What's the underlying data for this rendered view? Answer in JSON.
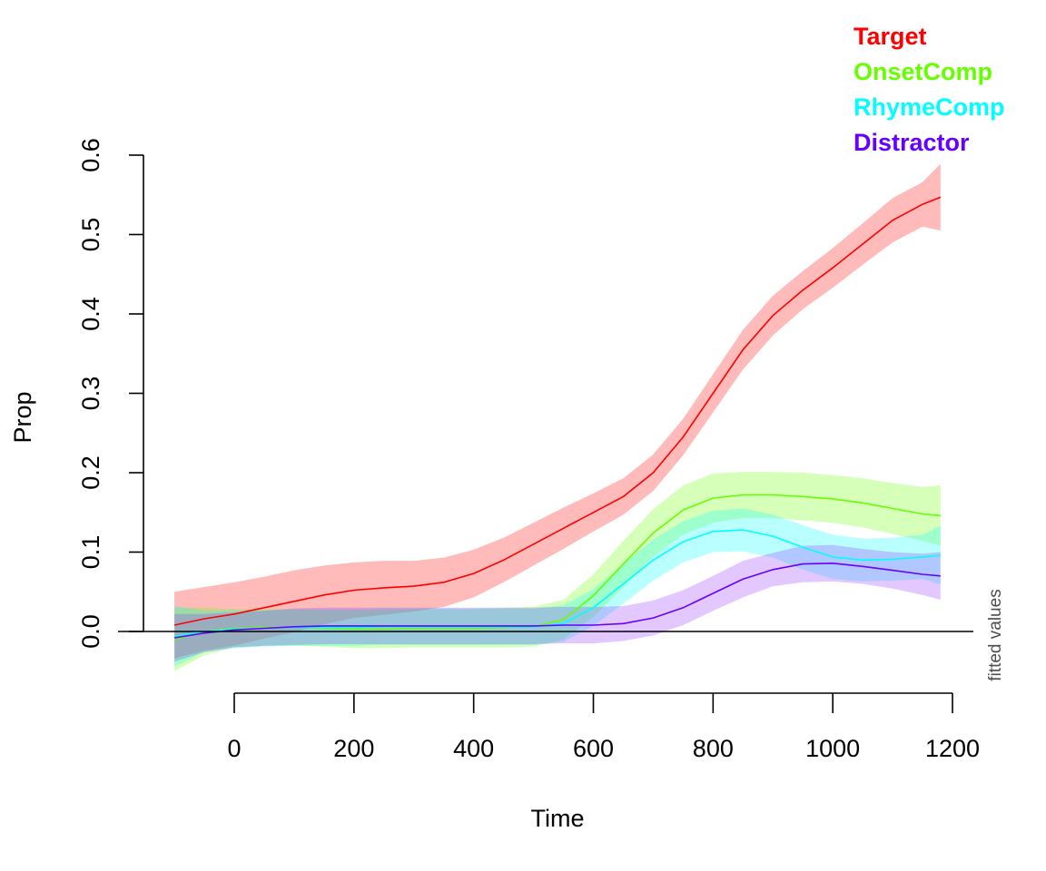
{
  "chart_data": {
    "type": "line",
    "title": "",
    "xlabel": "Time",
    "ylabel": "Prop",
    "annotation": "fitted values",
    "xlim": [
      -100,
      1180
    ],
    "ylim": [
      -0.05,
      0.6
    ],
    "xticks": [
      0,
      200,
      400,
      600,
      800,
      1000,
      1200
    ],
    "yticks": [
      0.0,
      0.1,
      0.2,
      0.3,
      0.4,
      0.5,
      0.6
    ],
    "xtick_labels": [
      "0",
      "200",
      "400",
      "600",
      "800",
      "1000",
      "1200"
    ],
    "ytick_labels": [
      "0.0",
      "0.1",
      "0.2",
      "0.3",
      "0.4",
      "0.5",
      "0.6"
    ],
    "reference_line_y": 0,
    "grid": false,
    "legend_position": "top-right",
    "x": [
      -100,
      -50,
      0,
      50,
      100,
      150,
      200,
      250,
      300,
      350,
      400,
      450,
      500,
      550,
      600,
      650,
      700,
      750,
      800,
      850,
      900,
      950,
      1000,
      1050,
      1100,
      1150,
      1180
    ],
    "series": [
      {
        "name": "Target",
        "color": "#ff0000",
        "band_color": "#ff0000",
        "values": [
          0.008,
          0.016,
          0.022,
          0.03,
          0.038,
          0.046,
          0.052,
          0.055,
          0.057,
          0.062,
          0.073,
          0.09,
          0.11,
          0.13,
          0.15,
          0.17,
          0.2,
          0.245,
          0.3,
          0.355,
          0.398,
          0.43,
          0.458,
          0.488,
          0.518,
          0.538,
          0.547
        ],
        "lower": [
          -0.034,
          -0.024,
          -0.018,
          -0.009,
          -0.001,
          0.009,
          0.017,
          0.021,
          0.025,
          0.031,
          0.043,
          0.062,
          0.083,
          0.104,
          0.126,
          0.147,
          0.177,
          0.222,
          0.276,
          0.33,
          0.373,
          0.406,
          0.433,
          0.462,
          0.49,
          0.51,
          0.505
        ],
        "upper": [
          0.05,
          0.056,
          0.062,
          0.069,
          0.077,
          0.083,
          0.087,
          0.089,
          0.089,
          0.093,
          0.103,
          0.118,
          0.137,
          0.156,
          0.174,
          0.193,
          0.223,
          0.268,
          0.324,
          0.38,
          0.423,
          0.454,
          0.483,
          0.514,
          0.546,
          0.566,
          0.589
        ]
      },
      {
        "name": "OnsetComp",
        "color": "#66ff00",
        "band_color": "#66ff00",
        "values": [
          -0.01,
          0.0,
          0.004,
          0.005,
          0.005,
          0.004,
          0.003,
          0.003,
          0.004,
          0.004,
          0.004,
          0.005,
          0.006,
          0.015,
          0.045,
          0.085,
          0.124,
          0.153,
          0.168,
          0.172,
          0.172,
          0.17,
          0.167,
          0.162,
          0.155,
          0.148,
          0.146
        ],
        "lower": [
          -0.05,
          -0.03,
          -0.02,
          -0.018,
          -0.018,
          -0.019,
          -0.021,
          -0.021,
          -0.02,
          -0.02,
          -0.02,
          -0.02,
          -0.019,
          -0.01,
          0.018,
          0.056,
          0.094,
          0.122,
          0.137,
          0.143,
          0.143,
          0.14,
          0.137,
          0.131,
          0.123,
          0.114,
          0.108
        ],
        "upper": [
          0.03,
          0.03,
          0.028,
          0.028,
          0.028,
          0.027,
          0.027,
          0.027,
          0.028,
          0.028,
          0.028,
          0.03,
          0.031,
          0.04,
          0.072,
          0.114,
          0.154,
          0.184,
          0.199,
          0.201,
          0.201,
          0.2,
          0.197,
          0.193,
          0.187,
          0.182,
          0.184
        ]
      },
      {
        "name": "RhymeComp",
        "color": "#00ffff",
        "band_color": "#00ffff",
        "values": [
          -0.006,
          0.0,
          0.003,
          0.004,
          0.005,
          0.005,
          0.005,
          0.006,
          0.006,
          0.006,
          0.006,
          0.006,
          0.006,
          0.01,
          0.03,
          0.06,
          0.09,
          0.113,
          0.126,
          0.128,
          0.12,
          0.106,
          0.094,
          0.09,
          0.091,
          0.094,
          0.096
        ],
        "lower": [
          -0.044,
          -0.026,
          -0.021,
          -0.019,
          -0.018,
          -0.018,
          -0.018,
          -0.017,
          -0.017,
          -0.017,
          -0.017,
          -0.017,
          -0.017,
          -0.013,
          0.007,
          0.035,
          0.064,
          0.087,
          0.1,
          0.101,
          0.093,
          0.078,
          0.066,
          0.063,
          0.064,
          0.066,
          0.059
        ],
        "upper": [
          0.032,
          0.026,
          0.027,
          0.027,
          0.028,
          0.028,
          0.028,
          0.029,
          0.029,
          0.029,
          0.029,
          0.029,
          0.029,
          0.033,
          0.053,
          0.085,
          0.116,
          0.139,
          0.152,
          0.155,
          0.147,
          0.134,
          0.122,
          0.117,
          0.118,
          0.122,
          0.133
        ]
      },
      {
        "name": "Distractor",
        "color": "#6600ff",
        "band_color": "#9933ff",
        "values": [
          -0.008,
          -0.002,
          0.002,
          0.004,
          0.006,
          0.007,
          0.007,
          0.007,
          0.007,
          0.007,
          0.007,
          0.007,
          0.007,
          0.008,
          0.008,
          0.01,
          0.017,
          0.03,
          0.048,
          0.066,
          0.078,
          0.085,
          0.086,
          0.082,
          0.077,
          0.072,
          0.07
        ],
        "lower": [
          -0.038,
          -0.026,
          -0.02,
          -0.018,
          -0.017,
          -0.016,
          -0.016,
          -0.016,
          -0.016,
          -0.016,
          -0.016,
          -0.016,
          -0.016,
          -0.015,
          -0.015,
          -0.012,
          -0.005,
          0.008,
          0.026,
          0.043,
          0.057,
          0.062,
          0.063,
          0.06,
          0.054,
          0.046,
          0.04
        ],
        "upper": [
          0.022,
          0.022,
          0.024,
          0.026,
          0.029,
          0.03,
          0.03,
          0.03,
          0.03,
          0.03,
          0.03,
          0.03,
          0.03,
          0.031,
          0.031,
          0.032,
          0.039,
          0.052,
          0.07,
          0.089,
          0.099,
          0.108,
          0.109,
          0.104,
          0.1,
          0.098,
          0.1
        ]
      }
    ]
  }
}
